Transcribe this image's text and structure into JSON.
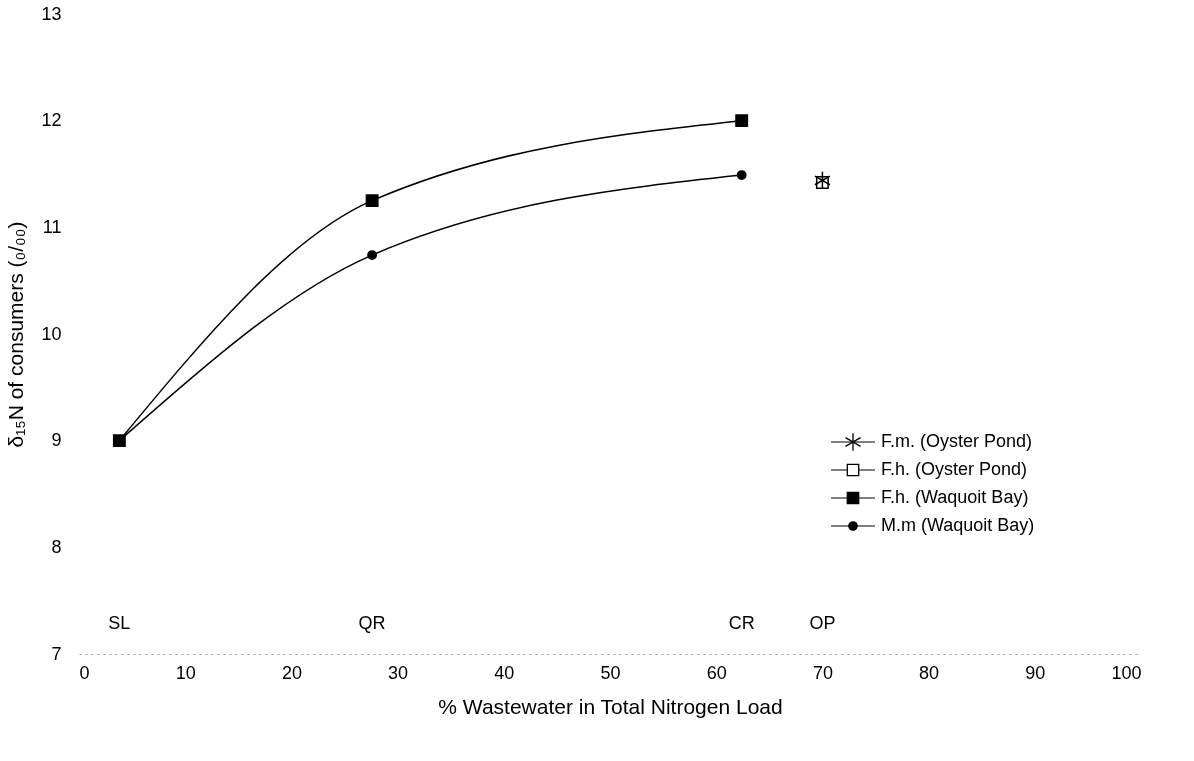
{
  "chart_data": {
    "type": "line",
    "xlabel": "% Wastewater in Total Nitrogen Load",
    "ylabel": "δ₁₅N of consumers (₀/₀₀)",
    "xlim": [
      0,
      100
    ],
    "xticks": [
      0,
      10,
      20,
      30,
      40,
      50,
      60,
      70,
      80,
      90,
      100
    ],
    "ylim": [
      7,
      13
    ],
    "yticks": [
      7,
      8,
      9,
      10,
      11,
      12,
      13
    ],
    "grid": false,
    "legend": "right",
    "line_style": "solid",
    "series": [
      {
        "name": "F.m. (Oyster Pond)",
        "type": "scatter",
        "marker": "cross",
        "color": "#000000",
        "x": [
          70
        ],
        "values": [
          11.44
        ]
      },
      {
        "name": "F.h. (Oyster Pond)",
        "type": "scatter",
        "marker": "square",
        "color": "#ffffff",
        "x": [
          70
        ],
        "values": [
          11.42
        ]
      },
      {
        "name": "F.h. (Waquoit Bay)",
        "marker": "square",
        "color": "#000000",
        "x": [
          3.8,
          27.6,
          62.4
        ],
        "values": [
          9.0,
          11.25,
          12.0
        ]
      },
      {
        "name": "M.m (Waquoit Bay)",
        "marker": "circle",
        "color": "#000000",
        "x": [
          3.8,
          27.6,
          62.4
        ],
        "values": [
          9.0,
          10.74,
          11.49
        ]
      }
    ],
    "annotations": [
      "SL",
      "QR",
      "CR",
      "OP"
    ]
  }
}
